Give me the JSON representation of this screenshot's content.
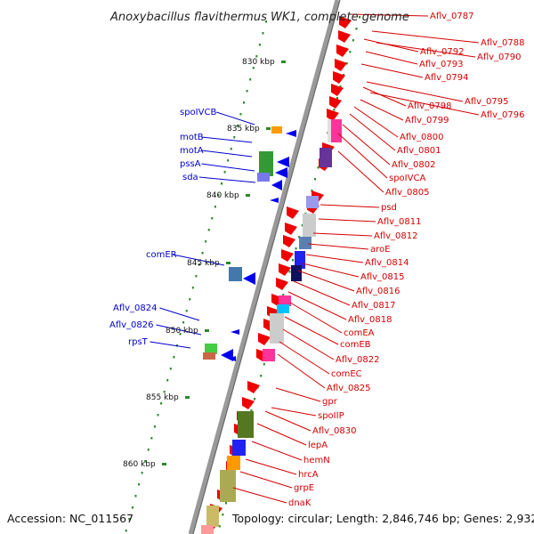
{
  "title": "Anoxybacillus flavithermus WK1, complete genome",
  "accession": "Accession: NC_011567",
  "topology": "Topology: circular; Length: 2,846,746 bp; Genes: 2,932",
  "colors": {
    "forward_gene": "#ee0000",
    "reverse_gene": "#0000ee",
    "backbone": "#888888",
    "tick_dots": "#2a8a2a",
    "label_right": "#d40000",
    "label_left": "#0000cc"
  },
  "ticks": [
    "830 kbp",
    "835 kbp",
    "840 kbp",
    "845 kbp",
    "850 kbp",
    "855 kbp",
    "860 kbp"
  ],
  "right_labels": [
    "Aflv_0787",
    "Aflv_0788",
    "Aflv_0792",
    "Aflv_0790",
    "Aflv_0793",
    "Aflv_0794",
    "Aflv_0795",
    "Aflv_0798",
    "Aflv_0796",
    "Aflv_0799",
    "Aflv_0800",
    "Aflv_0801",
    "Aflv_0802",
    "spoIVCA",
    "Aflv_0805",
    "psd",
    "Aflv_0811",
    "Aflv_0812",
    "aroE",
    "Aflv_0814",
    "Aflv_0815",
    "Aflv_0816",
    "Aflv_0817",
    "Aflv_0818",
    "comEA",
    "comEB",
    "Aflv_0822",
    "comEC",
    "Aflv_0825",
    "gpr",
    "spoIIP",
    "Aflv_0830",
    "lepA",
    "hemN",
    "hrcA",
    "grpE",
    "dnaK"
  ],
  "left_labels": [
    "spoIVCB",
    "motB",
    "motA",
    "pssA",
    "sda",
    "comER",
    "Aflv_0824",
    "Aflv_0826",
    "rpsT"
  ]
}
